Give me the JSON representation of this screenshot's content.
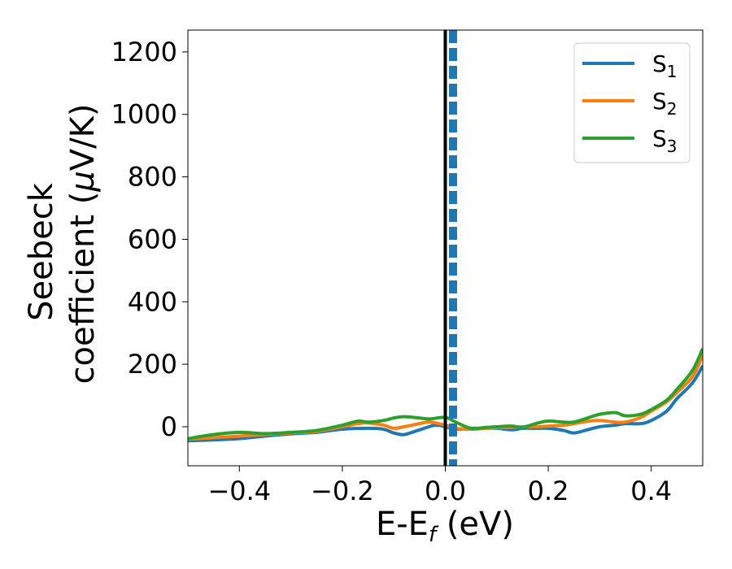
{
  "chart_data": {
    "type": "line",
    "xlabel": {
      "main": "E-E",
      "sub": "f",
      "rest": " (eV)"
    },
    "ylabel": {
      "line1": "Seebeck",
      "line2_prefix": "coefficient  (",
      "mu": "μ",
      "line2_suffix": "V/K)"
    },
    "xlim": [
      -0.5,
      0.5
    ],
    "ylim": [
      -125,
      1270
    ],
    "xticks": [
      -0.4,
      -0.2,
      0.0,
      0.2,
      0.4
    ],
    "xtick_labels": [
      "−0.4",
      "−0.2",
      "0.0",
      "0.2",
      "0.4"
    ],
    "yticks": [
      0,
      200,
      400,
      600,
      800,
      1000,
      1200
    ],
    "ytick_labels": [
      "0",
      "200",
      "400",
      "600",
      "800",
      "1000",
      "1200"
    ],
    "grid": false,
    "legend_position": "top-right",
    "vlines": [
      {
        "x": 0.0,
        "style": "solid",
        "color": "#000000"
      },
      {
        "x": 0.015,
        "style": "dashed",
        "color": "#1f77b4"
      }
    ],
    "series": [
      {
        "name": "S",
        "sub": "1",
        "color": "#1f77b4",
        "x": [
          -0.5,
          -0.45,
          -0.4,
          -0.35,
          -0.3,
          -0.25,
          -0.2,
          -0.15,
          -0.12,
          -0.1,
          -0.08,
          -0.05,
          -0.02,
          0.0,
          0.02,
          0.05,
          0.08,
          0.1,
          0.13,
          0.15,
          0.18,
          0.2,
          0.23,
          0.25,
          0.28,
          0.3,
          0.33,
          0.35,
          0.38,
          0.4,
          0.43,
          0.45,
          0.48,
          0.5
        ],
        "y": [
          -45,
          -42,
          -38,
          -30,
          -23,
          -18,
          -8,
          -5,
          -8,
          -20,
          -25,
          -10,
          5,
          0,
          -8,
          -5,
          -5,
          -5,
          -10,
          -5,
          -5,
          -5,
          -12,
          -20,
          -8,
          0,
          5,
          10,
          10,
          20,
          50,
          90,
          140,
          195
        ]
      },
      {
        "name": "S",
        "sub": "2",
        "color": "#ff7f0e",
        "x": [
          -0.5,
          -0.45,
          -0.4,
          -0.35,
          -0.3,
          -0.25,
          -0.2,
          -0.17,
          -0.15,
          -0.12,
          -0.1,
          -0.08,
          -0.05,
          -0.03,
          0.0,
          0.02,
          0.05,
          0.08,
          0.1,
          0.13,
          0.15,
          0.18,
          0.2,
          0.23,
          0.25,
          0.28,
          0.3,
          0.33,
          0.35,
          0.38,
          0.4,
          0.43,
          0.45,
          0.48,
          0.5
        ],
        "y": [
          -40,
          -35,
          -30,
          -25,
          -20,
          -15,
          0,
          10,
          12,
          5,
          -5,
          0,
          10,
          15,
          5,
          -5,
          -8,
          -5,
          -3,
          -2,
          0,
          0,
          2,
          5,
          10,
          18,
          20,
          15,
          15,
          30,
          50,
          80,
          110,
          160,
          230
        ]
      },
      {
        "name": "S",
        "sub": "3",
        "color": "#2ca02c",
        "x": [
          -0.5,
          -0.45,
          -0.4,
          -0.35,
          -0.3,
          -0.25,
          -0.2,
          -0.17,
          -0.15,
          -0.12,
          -0.1,
          -0.08,
          -0.05,
          -0.03,
          0.0,
          0.02,
          0.05,
          0.08,
          0.1,
          0.13,
          0.15,
          0.18,
          0.2,
          0.23,
          0.25,
          0.28,
          0.3,
          0.33,
          0.35,
          0.38,
          0.4,
          0.43,
          0.45,
          0.48,
          0.5
        ],
        "y": [
          -38,
          -25,
          -18,
          -22,
          -18,
          -12,
          5,
          18,
          15,
          20,
          28,
          32,
          28,
          25,
          30,
          15,
          -5,
          -2,
          0,
          2,
          -2,
          12,
          18,
          15,
          15,
          30,
          40,
          45,
          35,
          40,
          55,
          85,
          120,
          180,
          250
        ]
      }
    ]
  }
}
